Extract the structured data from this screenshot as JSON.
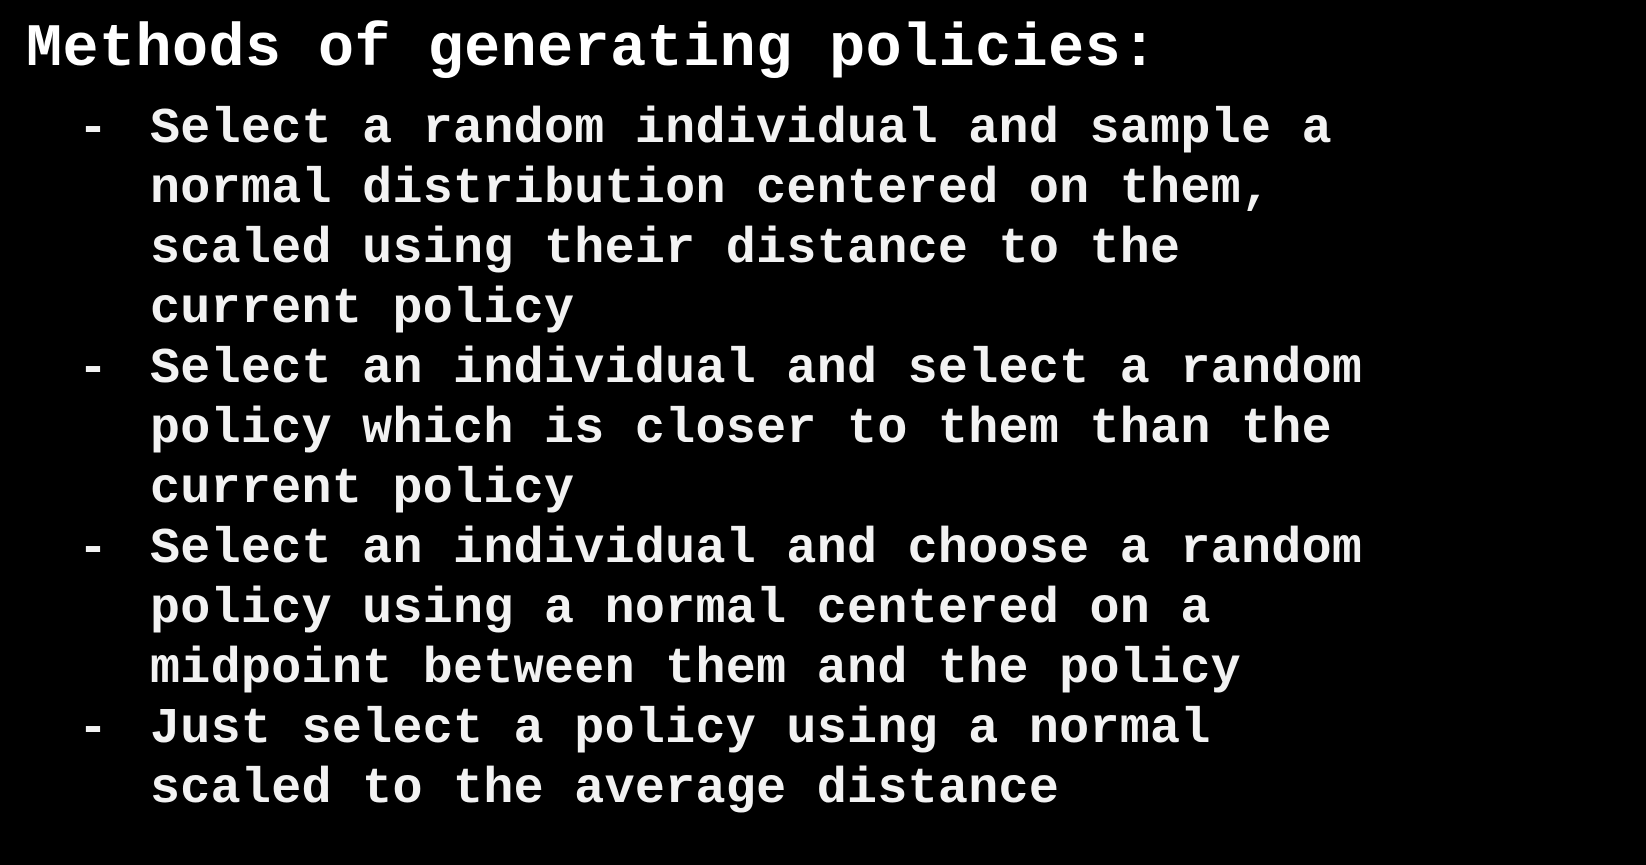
{
  "slide": {
    "title": "Methods of generating policies:",
    "bullet_marker": "-",
    "items": [
      {
        "lines": [
          "Select a random individual and sample a",
          "normal distribution centered on them,",
          "scaled using their distance to the",
          "current policy"
        ]
      },
      {
        "lines": [
          "Select an individual and select a random",
          "policy which is closer to them than the",
          "current policy"
        ]
      },
      {
        "lines": [
          "Select an individual and choose a random",
          "policy using a normal centered on a",
          "midpoint between them and the policy"
        ]
      },
      {
        "lines": [
          "Just select a policy using a normal",
          "scaled to the average distance"
        ]
      }
    ]
  },
  "colors": {
    "background": "#000000",
    "text": "#f2f2f2"
  }
}
